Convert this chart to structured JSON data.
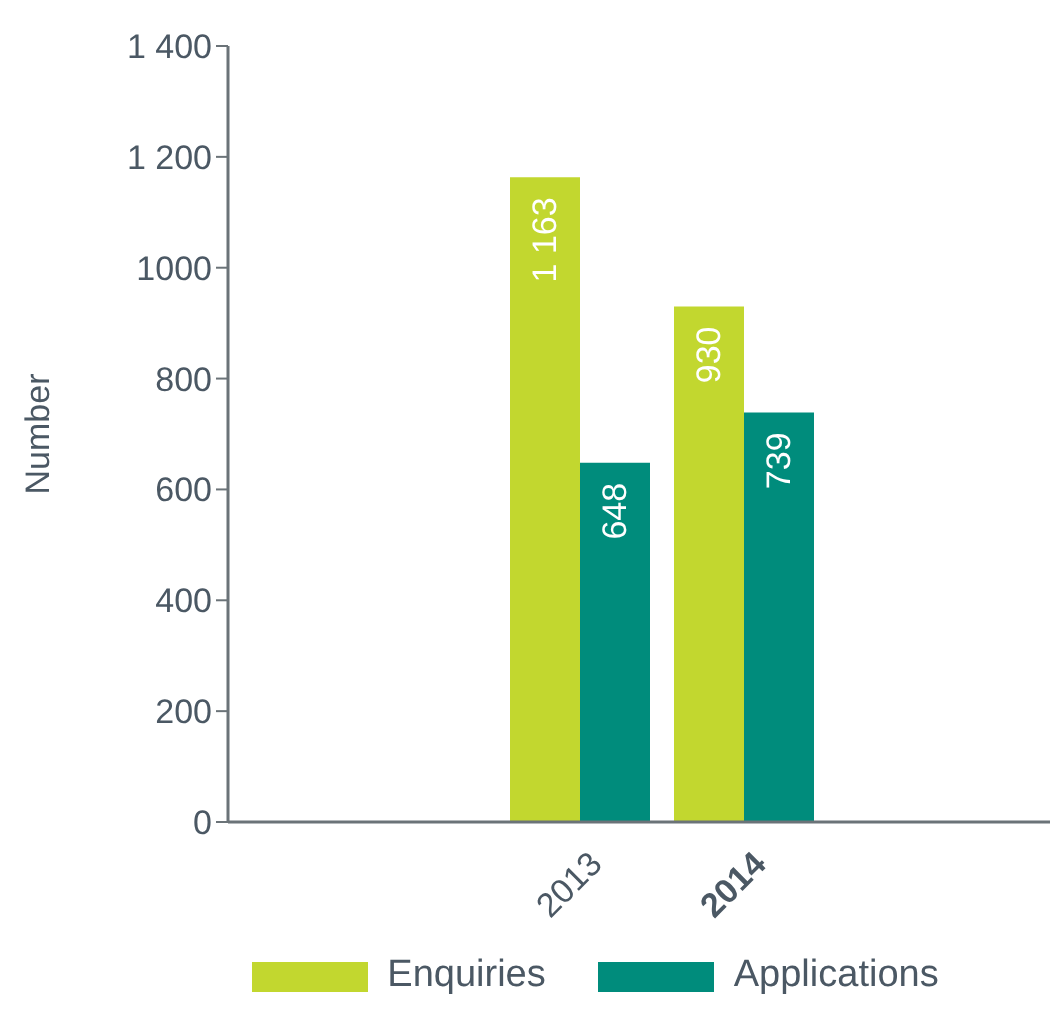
{
  "chart_data": {
    "type": "bar",
    "ylabel": "Number",
    "categories": [
      "2013",
      "2014"
    ],
    "series": [
      {
        "name": "Enquiries",
        "color": "#c2d72f",
        "values": [
          1163,
          930
        ],
        "value_labels": [
          "1 163",
          "930"
        ]
      },
      {
        "name": "Applications",
        "color": "#008c7c",
        "values": [
          648,
          739
        ],
        "value_labels": [
          "648",
          "739"
        ]
      }
    ],
    "ylim": [
      0,
      1400
    ],
    "yticks": [
      0,
      200,
      400,
      600,
      800,
      1000,
      {
        "value": 1200,
        "label": "1 200"
      },
      {
        "value": 1400,
        "label": "1 400"
      }
    ],
    "legend": "bottom"
  }
}
